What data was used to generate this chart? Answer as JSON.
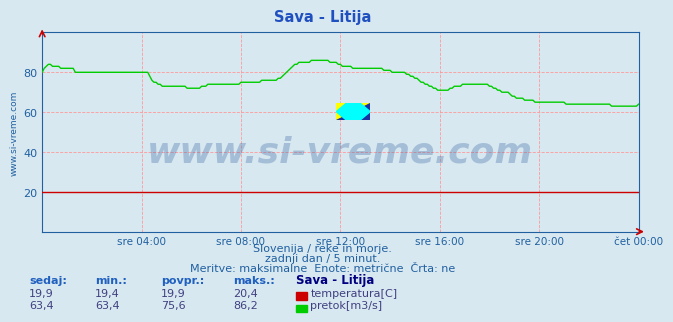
{
  "title": "Sava - Litija",
  "bg_color": "#d8e8f0",
  "plot_bg_color": "#d8e8f0",
  "grid_color": "#ff9999",
  "xlim": [
    0,
    288
  ],
  "ylim": [
    0,
    100
  ],
  "yticks": [
    20,
    40,
    60,
    80
  ],
  "xtick_labels": [
    "sre 04:00",
    "sre 08:00",
    "sre 12:00",
    "sre 16:00",
    "sre 20:00",
    "čet 00:00"
  ],
  "xtick_positions": [
    48,
    96,
    144,
    192,
    240,
    288
  ],
  "temp_color": "#cc0000",
  "flow_color": "#00cc00",
  "watermark_text": "www.si-vreme.com",
  "watermark_color": "#3060a0",
  "watermark_alpha": 0.3,
  "subtitle1": "Slovenija / reke in morje.",
  "subtitle2": "zadnji dan / 5 minut.",
  "subtitle3": "Meritve: maksimalne  Enote: metrične  Črta: ne",
  "legend_header": "Sava - Litija",
  "legend_label1": "temperatura[C]",
  "legend_label2": "pretok[m3/s]",
  "stat_labels": [
    "sedaj:",
    "min.:",
    "povpr.:",
    "maks.:"
  ],
  "temp_stats": [
    "19,9",
    "19,4",
    "19,9",
    "20,4"
  ],
  "flow_stats": [
    "63,4",
    "63,4",
    "75,6",
    "86,2"
  ],
  "flow_data": [
    80,
    82,
    83,
    84,
    84,
    83,
    83,
    83,
    83,
    82,
    82,
    82,
    82,
    82,
    82,
    82,
    80,
    80,
    80,
    80,
    80,
    80,
    80,
    80,
    80,
    80,
    80,
    80,
    80,
    80,
    80,
    80,
    80,
    80,
    80,
    80,
    80,
    80,
    80,
    80,
    80,
    80,
    80,
    80,
    80,
    80,
    80,
    80,
    80,
    80,
    80,
    80,
    78,
    76,
    75,
    75,
    74,
    74,
    73,
    73,
    73,
    73,
    73,
    73,
    73,
    73,
    73,
    73,
    73,
    73,
    72,
    72,
    72,
    72,
    72,
    72,
    72,
    73,
    73,
    73,
    74,
    74,
    74,
    74,
    74,
    74,
    74,
    74,
    74,
    74,
    74,
    74,
    74,
    74,
    74,
    74,
    75,
    75,
    75,
    75,
    75,
    75,
    75,
    75,
    75,
    75,
    76,
    76,
    76,
    76,
    76,
    76,
    76,
    76,
    77,
    77,
    78,
    79,
    80,
    81,
    82,
    83,
    84,
    84,
    85,
    85,
    85,
    85,
    85,
    85,
    86,
    86,
    86,
    86,
    86,
    86,
    86,
    86,
    86,
    85,
    85,
    85,
    85,
    84,
    84,
    83,
    83,
    83,
    83,
    83,
    82,
    82,
    82,
    82,
    82,
    82,
    82,
    82,
    82,
    82,
    82,
    82,
    82,
    82,
    82,
    81,
    81,
    81,
    81,
    80,
    80,
    80,
    80,
    80,
    80,
    80,
    79,
    79,
    78,
    78,
    77,
    77,
    76,
    75,
    75,
    74,
    74,
    73,
    73,
    72,
    72,
    71,
    71,
    71,
    71,
    71,
    71,
    72,
    72,
    73,
    73,
    73,
    73,
    74,
    74,
    74,
    74,
    74,
    74,
    74,
    74,
    74,
    74,
    74,
    74,
    74,
    73,
    73,
    72,
    72,
    71,
    71,
    70,
    70,
    70,
    70,
    69,
    68,
    68,
    67,
    67,
    67,
    67,
    66,
    66,
    66,
    66,
    66,
    65,
    65,
    65,
    65,
    65,
    65,
    65,
    65,
    65,
    65,
    65,
    65,
    65,
    65,
    65,
    64,
    64,
    64,
    64,
    64,
    64,
    64,
    64,
    64,
    64,
    64,
    64,
    64,
    64,
    64,
    64,
    64,
    64,
    64,
    64,
    64,
    64,
    63,
    63,
    63,
    63,
    63,
    63,
    63,
    63,
    63,
    63,
    63,
    63,
    63,
    64
  ],
  "temp_data_value": 19.9,
  "axis_color": "#2060a0",
  "text_color": "#2060a0",
  "label_color": "#404080"
}
